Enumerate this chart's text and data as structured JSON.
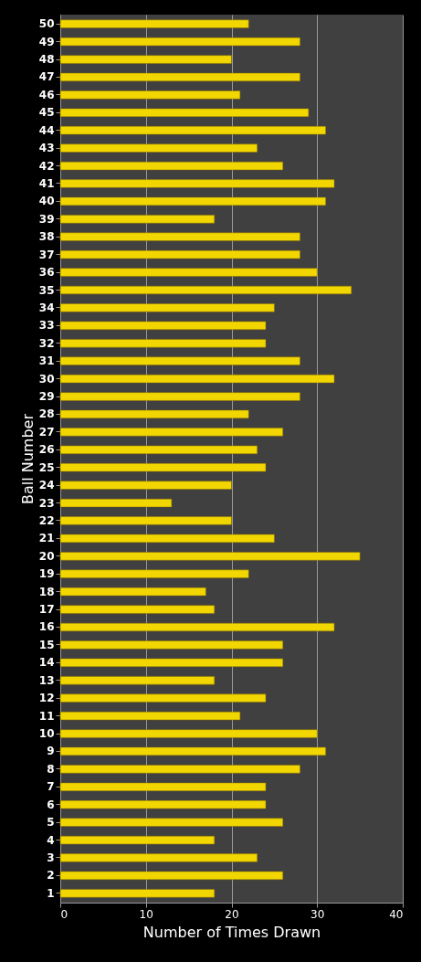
{
  "chart_data": {
    "type": "bar",
    "orientation": "horizontal",
    "xlabel": "Number of Times Drawn",
    "ylabel": "Ball Number",
    "categories": [
      "50",
      "49",
      "48",
      "47",
      "46",
      "45",
      "44",
      "43",
      "42",
      "41",
      "40",
      "39",
      "38",
      "37",
      "36",
      "35",
      "34",
      "33",
      "32",
      "31",
      "30",
      "29",
      "28",
      "27",
      "26",
      "25",
      "24",
      "23",
      "22",
      "21",
      "20",
      "19",
      "18",
      "17",
      "16",
      "15",
      "14",
      "13",
      "12",
      "11",
      "10",
      "9",
      "8",
      "7",
      "6",
      "5",
      "4",
      "3",
      "2",
      "1"
    ],
    "values": [
      22,
      28,
      20,
      28,
      21,
      29,
      31,
      23,
      26,
      32,
      31,
      18,
      28,
      28,
      30,
      34,
      25,
      24,
      24,
      28,
      32,
      28,
      22,
      26,
      23,
      24,
      20,
      13,
      20,
      25,
      35,
      22,
      17,
      18,
      32,
      26,
      26,
      18,
      24,
      21,
      30,
      31,
      28,
      24,
      24,
      26,
      18,
      23,
      26,
      18
    ],
    "color": "#f2d600",
    "xlim": [
      0,
      40
    ],
    "xticks": [
      0,
      10,
      20,
      30,
      40
    ],
    "grid": "x"
  }
}
